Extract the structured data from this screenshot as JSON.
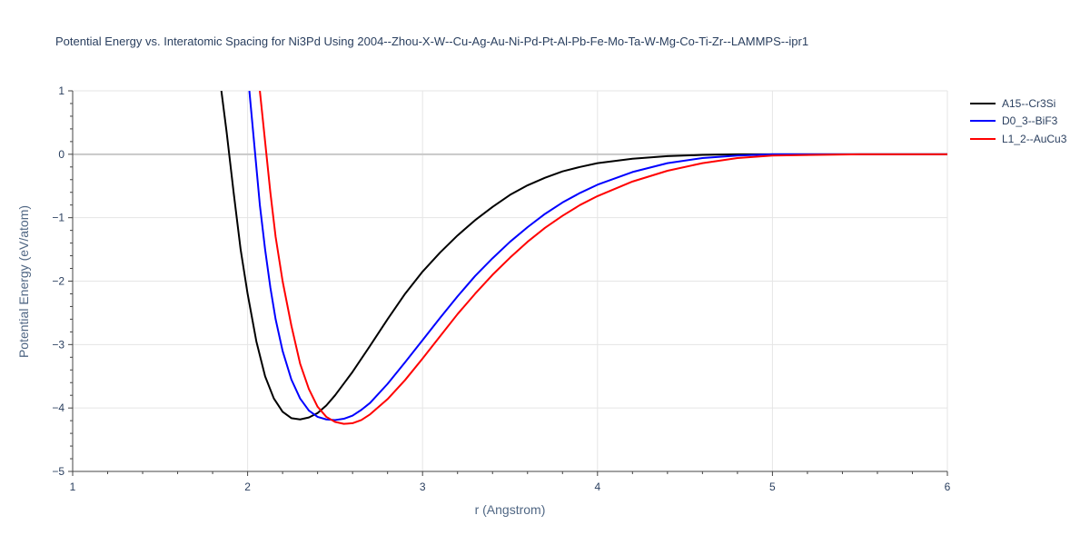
{
  "chart_data": {
    "type": "line",
    "title": "Potential Energy vs. Interatomic Spacing for Ni3Pd Using 2004--Zhou-X-W--Cu-Ag-Au-Ni-Pd-Pt-Al-Pb-Fe-Mo-Ta-W-Mg-Co-Ti-Zr--LAMMPS--ipr1",
    "xlabel": "r (Angstrom)",
    "ylabel": "Potential Energy (eV/atom)",
    "xlim": [
      1,
      6
    ],
    "ylim": [
      -5,
      1
    ],
    "xticks": [
      1,
      2,
      3,
      4,
      5,
      6
    ],
    "yticks": [
      -5,
      -4,
      -3,
      -2,
      -1,
      0,
      1
    ],
    "grid": true,
    "legend_position": "top-right",
    "series": [
      {
        "name": "A15--Cr3Si",
        "color": "#000000",
        "x": [
          1.85,
          1.88,
          1.92,
          1.96,
          2.0,
          2.05,
          2.1,
          2.15,
          2.2,
          2.25,
          2.3,
          2.35,
          2.4,
          2.45,
          2.5,
          2.6,
          2.7,
          2.8,
          2.9,
          3.0,
          3.1,
          3.2,
          3.3,
          3.4,
          3.5,
          3.6,
          3.7,
          3.8,
          3.9,
          4.0,
          4.2,
          4.4,
          4.6,
          4.8,
          5.0,
          5.5,
          6.0
        ],
        "y": [
          1.0,
          0.35,
          -0.6,
          -1.5,
          -2.2,
          -2.95,
          -3.5,
          -3.85,
          -4.06,
          -4.16,
          -4.18,
          -4.15,
          -4.08,
          -3.96,
          -3.8,
          -3.43,
          -3.02,
          -2.6,
          -2.2,
          -1.85,
          -1.55,
          -1.28,
          -1.04,
          -0.83,
          -0.64,
          -0.49,
          -0.37,
          -0.27,
          -0.2,
          -0.14,
          -0.07,
          -0.03,
          -0.01,
          0.0,
          0.0,
          0.0,
          0.0
        ]
      },
      {
        "name": "D0_3--BiF3",
        "color": "#0000ff",
        "x": [
          2.01,
          2.04,
          2.07,
          2.1,
          2.13,
          2.16,
          2.2,
          2.25,
          2.3,
          2.35,
          2.4,
          2.45,
          2.5,
          2.55,
          2.6,
          2.65,
          2.7,
          2.8,
          2.9,
          3.0,
          3.1,
          3.2,
          3.3,
          3.4,
          3.5,
          3.6,
          3.7,
          3.8,
          3.9,
          4.0,
          4.2,
          4.4,
          4.6,
          4.8,
          5.0,
          5.5,
          6.0
        ],
        "y": [
          1.0,
          0.1,
          -0.8,
          -1.5,
          -2.1,
          -2.6,
          -3.1,
          -3.55,
          -3.85,
          -4.04,
          -4.14,
          -4.18,
          -4.19,
          -4.17,
          -4.12,
          -4.03,
          -3.92,
          -3.62,
          -3.28,
          -2.93,
          -2.58,
          -2.24,
          -1.92,
          -1.64,
          -1.38,
          -1.15,
          -0.94,
          -0.76,
          -0.61,
          -0.48,
          -0.28,
          -0.14,
          -0.06,
          -0.02,
          0.0,
          0.0,
          0.0
        ]
      },
      {
        "name": "L1_2--AuCu3",
        "color": "#ff0000",
        "x": [
          2.07,
          2.1,
          2.13,
          2.16,
          2.2,
          2.25,
          2.3,
          2.35,
          2.4,
          2.45,
          2.5,
          2.55,
          2.6,
          2.65,
          2.7,
          2.8,
          2.9,
          3.0,
          3.1,
          3.2,
          3.3,
          3.4,
          3.5,
          3.6,
          3.7,
          3.8,
          3.9,
          4.0,
          4.2,
          4.4,
          4.6,
          4.8,
          5.0,
          5.5,
          6.0
        ],
        "y": [
          1.0,
          0.2,
          -0.6,
          -1.3,
          -2.0,
          -2.7,
          -3.3,
          -3.7,
          -3.98,
          -4.14,
          -4.22,
          -4.25,
          -4.24,
          -4.19,
          -4.1,
          -3.86,
          -3.56,
          -3.22,
          -2.87,
          -2.52,
          -2.2,
          -1.9,
          -1.63,
          -1.38,
          -1.16,
          -0.97,
          -0.8,
          -0.66,
          -0.43,
          -0.26,
          -0.14,
          -0.06,
          -0.02,
          0.0,
          0.0
        ]
      }
    ]
  }
}
